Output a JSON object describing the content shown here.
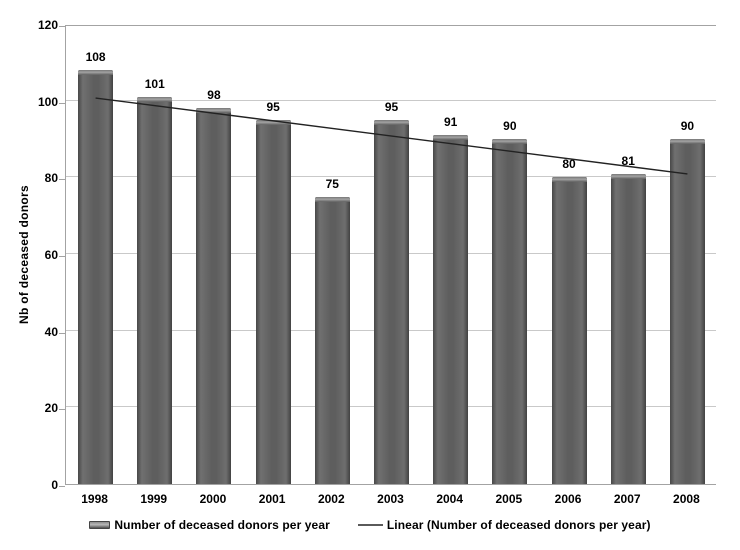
{
  "chart_data": {
    "type": "bar",
    "title": "",
    "xlabel": "",
    "ylabel": "Nb of deceased donors",
    "categories": [
      "1998",
      "1999",
      "2000",
      "2001",
      "2002",
      "2003",
      "2004",
      "2005",
      "2006",
      "2007",
      "2008"
    ],
    "series": [
      {
        "name": "Number of deceased donors per year",
        "values": [
          108,
          101,
          98,
          95,
          75,
          95,
          91,
          90,
          80,
          81,
          90
        ]
      }
    ],
    "trendline": {
      "name": "Linear (Number of deceased donors per year)",
      "start_value": 101.2,
      "end_value": 81.4
    },
    "ylim": [
      0,
      120
    ],
    "yticks": [
      0,
      20,
      40,
      60,
      80,
      100,
      120
    ],
    "grid": true,
    "legend_position": "bottom",
    "data_labels_shown": true,
    "colors": {
      "bar": "#5e5e5e",
      "bar_cap": "#9a9a9a",
      "gridline": "#c9c9c9",
      "axis": "#a3a3a3",
      "trendline": "#222222",
      "text": "#000000",
      "background": "#ffffff"
    }
  }
}
